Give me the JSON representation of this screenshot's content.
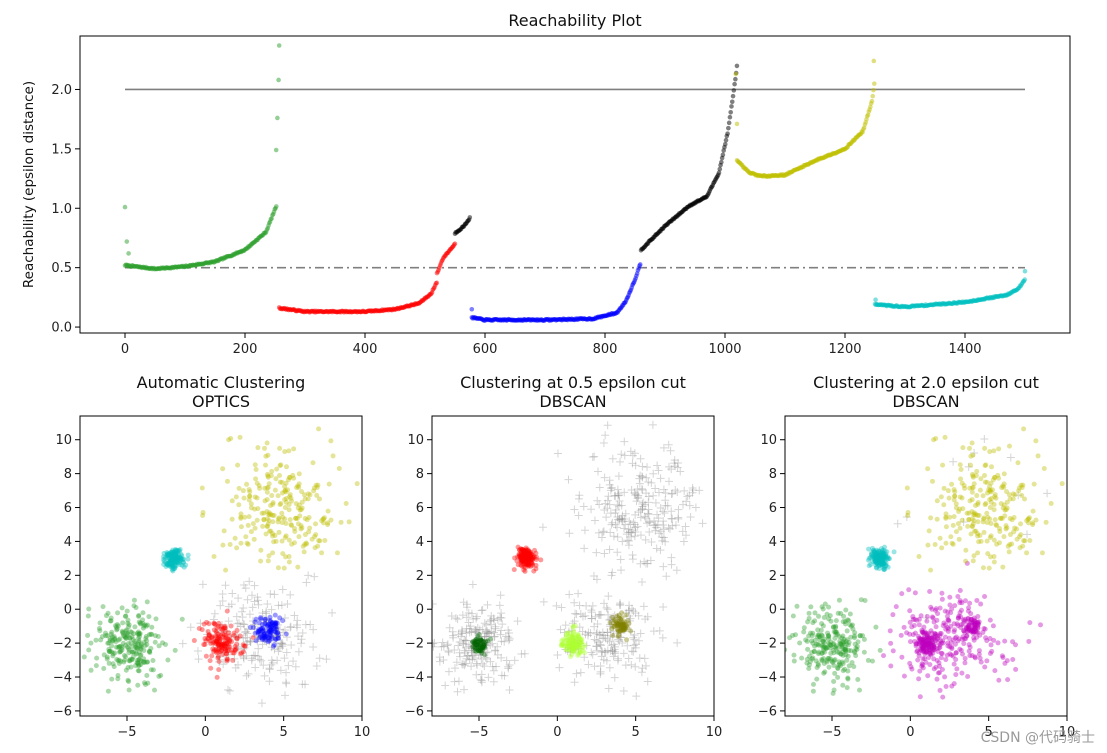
{
  "watermark": "CSDN @代码骑士",
  "colors": {
    "green": "#2ca02c",
    "red": "#ff0000",
    "blue": "#0000ff",
    "black": "#000000",
    "yellow": "#bfbf00",
    "cyan": "#00bfbf",
    "magenta": "#bf00bf",
    "olive": "#808000",
    "lime": "#adff2f",
    "darkgreen": "#006400",
    "noise": "#888888",
    "line_gray": "#7f7f7f"
  },
  "chart_data": [
    {
      "id": "reach",
      "type": "scatter",
      "title": "Reachability Plot",
      "xlabel": "",
      "ylabel": "Reachability (epsilon distance)",
      "xlim": [
        -75,
        1575
      ],
      "ylim": [
        -0.05,
        2.45
      ],
      "xticks": [
        0,
        200,
        400,
        600,
        800,
        1000,
        1200,
        1400
      ],
      "yticks": [
        0.0,
        0.5,
        1.0,
        1.5,
        2.0
      ],
      "ytick_labels": [
        "0.0",
        "0.5",
        "1.0",
        "1.5",
        "2.0"
      ],
      "hlines": [
        {
          "y": 2.0,
          "style": "solid",
          "color": "#7f7f7f"
        },
        {
          "y": 0.5,
          "style": "dashdot",
          "color": "#7f7f7f"
        }
      ],
      "segments": [
        {
          "color": "green",
          "x0": 0,
          "x1": 253,
          "curve": [
            [
              0,
              0.52
            ],
            [
              50,
              0.49
            ],
            [
              100,
              0.51
            ],
            [
              150,
              0.55
            ],
            [
              200,
              0.65
            ],
            [
              235,
              0.8
            ],
            [
              253,
              1.03
            ]
          ],
          "outliers": [
            [
              0,
              1.01
            ],
            [
              3,
              0.72
            ],
            [
              6,
              0.62
            ],
            [
              252,
              1.49
            ],
            [
              254,
              1.76
            ],
            [
              256,
              2.08
            ],
            [
              257,
              2.37
            ]
          ]
        },
        {
          "color": "red",
          "x0": 257,
          "x1": 520,
          "curve": [
            [
              257,
              0.16
            ],
            [
              300,
              0.13
            ],
            [
              400,
              0.13
            ],
            [
              450,
              0.15
            ],
            [
              490,
              0.2
            ],
            [
              510,
              0.28
            ],
            [
              520,
              0.38
            ]
          ]
        },
        {
          "color": "red",
          "x0": 520,
          "x1": 550,
          "curve": [
            [
              520,
              0.45
            ],
            [
              530,
              0.58
            ],
            [
              550,
              0.7
            ]
          ]
        },
        {
          "color": "black",
          "x0": 550,
          "x1": 575,
          "curve": [
            [
              550,
              0.79
            ],
            [
              565,
              0.85
            ],
            [
              575,
              0.92
            ]
          ]
        },
        {
          "color": "blue",
          "x0": 578,
          "x1": 860,
          "curve": [
            [
              578,
              0.08
            ],
            [
              600,
              0.06
            ],
            [
              700,
              0.06
            ],
            [
              780,
              0.07
            ],
            [
              820,
              0.12
            ],
            [
              835,
              0.22
            ],
            [
              850,
              0.4
            ],
            [
              860,
              0.55
            ]
          ],
          "outliers": [
            [
              578,
              0.15
            ]
          ]
        },
        {
          "color": "black",
          "x0": 860,
          "x1": 1020,
          "curve": [
            [
              860,
              0.65
            ],
            [
              900,
              0.85
            ],
            [
              940,
              1.02
            ],
            [
              970,
              1.1
            ],
            [
              990,
              1.3
            ],
            [
              1005,
              1.65
            ],
            [
              1015,
              2.0
            ],
            [
              1020,
              2.2
            ]
          ]
        },
        {
          "color": "yellow",
          "x0": 1020,
          "x1": 1250,
          "curve": [
            [
              1020,
              1.4
            ],
            [
              1040,
              1.3
            ],
            [
              1060,
              1.27
            ],
            [
              1100,
              1.28
            ],
            [
              1150,
              1.4
            ],
            [
              1200,
              1.5
            ],
            [
              1230,
              1.65
            ],
            [
              1245,
              1.9
            ],
            [
              1250,
              2.1
            ]
          ],
          "outliers": [
            [
              1020,
              1.71
            ],
            [
              1018,
              2.13
            ],
            [
              1248,
              2.24
            ]
          ]
        },
        {
          "color": "cyan",
          "x0": 1250,
          "x1": 1500,
          "curve": [
            [
              1250,
              0.19
            ],
            [
              1300,
              0.17
            ],
            [
              1400,
              0.21
            ],
            [
              1470,
              0.27
            ],
            [
              1490,
              0.33
            ],
            [
              1500,
              0.4
            ]
          ],
          "outliers": [
            [
              1251,
              0.23
            ],
            [
              1500,
              0.47
            ]
          ]
        }
      ]
    },
    {
      "id": "optics",
      "type": "scatter",
      "title": "Automatic Clustering",
      "subtitle": "OPTICS",
      "xlim": [
        -8,
        10
      ],
      "ylim": [
        -6.3,
        11.4
      ],
      "xticks": [
        -5,
        0,
        5,
        10
      ],
      "xtick_labels": [
        "−5",
        "0",
        "5",
        "10"
      ],
      "yticks": [
        -6,
        -4,
        -2,
        0,
        2,
        4,
        6,
        8,
        10
      ],
      "ytick_labels": [
        "−6",
        "−4",
        "−2",
        "0",
        "2",
        "4",
        "6",
        "8",
        "10"
      ],
      "clusters": [
        {
          "color": "green",
          "cx": -5,
          "cy": -2,
          "sx": 1.1,
          "sy": 1.1,
          "n": 240,
          "marker": "dot"
        },
        {
          "color": "cyan",
          "cx": -2,
          "cy": 3,
          "sx": 0.3,
          "sy": 0.3,
          "n": 150,
          "marker": "dot"
        },
        {
          "color": "red",
          "cx": 1,
          "cy": -2,
          "sx": 0.6,
          "sy": 0.6,
          "n": 150,
          "marker": "dot"
        },
        {
          "color": "blue",
          "cx": 4,
          "cy": -1.2,
          "sx": 0.45,
          "sy": 0.45,
          "n": 100,
          "marker": "dot"
        },
        {
          "color": "yellow",
          "cx": 5,
          "cy": 6,
          "sx": 1.8,
          "sy": 1.8,
          "n": 250,
          "marker": "dot"
        },
        {
          "color": "noise",
          "cx": 3.5,
          "cy": -1.5,
          "sx": 1.8,
          "sy": 1.5,
          "n": 190,
          "marker": "plus"
        }
      ]
    },
    {
      "id": "dbscan05",
      "type": "scatter",
      "title": "Clustering at 0.5 epsilon cut",
      "subtitle": "DBSCAN",
      "xlim": [
        -8,
        10
      ],
      "ylim": [
        -6.3,
        11.4
      ],
      "xticks": [
        -5,
        0,
        5,
        10
      ],
      "xtick_labels": [
        "−5",
        "0",
        "5",
        "10"
      ],
      "yticks": [
        -6,
        -4,
        -2,
        0,
        2,
        4,
        6,
        8,
        10
      ],
      "ytick_labels": [
        "−6",
        "−4",
        "−2",
        "0",
        "2",
        "4",
        "6",
        "8",
        "10"
      ],
      "clusters": [
        {
          "color": "noise",
          "cx": -5,
          "cy": -2,
          "sx": 1.2,
          "sy": 1.2,
          "n": 200,
          "marker": "plus"
        },
        {
          "color": "noise",
          "cx": 5,
          "cy": 6,
          "sx": 1.8,
          "sy": 1.8,
          "n": 250,
          "marker": "plus"
        },
        {
          "color": "noise",
          "cx": 3,
          "cy": -1.5,
          "sx": 1.6,
          "sy": 1.4,
          "n": 180,
          "marker": "plus"
        },
        {
          "color": "darkgreen",
          "cx": -5,
          "cy": -2.1,
          "sx": 0.25,
          "sy": 0.25,
          "n": 60,
          "marker": "dot"
        },
        {
          "color": "red",
          "cx": -2,
          "cy": 3,
          "sx": 0.3,
          "sy": 0.3,
          "n": 150,
          "marker": "dot"
        },
        {
          "color": "lime",
          "cx": 1,
          "cy": -2,
          "sx": 0.35,
          "sy": 0.35,
          "n": 110,
          "marker": "dot"
        },
        {
          "color": "olive",
          "cx": 4,
          "cy": -1,
          "sx": 0.3,
          "sy": 0.3,
          "n": 70,
          "marker": "dot"
        }
      ]
    },
    {
      "id": "dbscan20",
      "type": "scatter",
      "title": "Clustering at 2.0 epsilon cut",
      "subtitle": "DBSCAN",
      "xlim": [
        -8,
        10
      ],
      "ylim": [
        -6.3,
        11.4
      ],
      "xticks": [
        -5,
        0,
        5,
        10
      ],
      "xtick_labels": [
        "−5",
        "0",
        "5",
        "10"
      ],
      "yticks": [
        -6,
        -4,
        -2,
        0,
        2,
        4,
        6,
        8,
        10
      ],
      "ytick_labels": [
        "−6",
        "−4",
        "−2",
        "0",
        "2",
        "4",
        "6",
        "8",
        "10"
      ],
      "clusters": [
        {
          "color": "green",
          "cx": -5,
          "cy": -2,
          "sx": 1.1,
          "sy": 1.1,
          "n": 240,
          "marker": "dot"
        },
        {
          "color": "cyan",
          "cx": -2,
          "cy": 3,
          "sx": 0.3,
          "sy": 0.3,
          "n": 150,
          "marker": "dot"
        },
        {
          "color": "magenta",
          "cx": 2.5,
          "cy": -1.7,
          "sx": 1.7,
          "sy": 1.4,
          "n": 250,
          "marker": "dot"
        },
        {
          "color": "magenta",
          "cx": 1,
          "cy": -2,
          "sx": 0.35,
          "sy": 0.35,
          "n": 120,
          "marker": "dot"
        },
        {
          "color": "magenta",
          "cx": 4,
          "cy": -1,
          "sx": 0.3,
          "sy": 0.3,
          "n": 60,
          "marker": "dot"
        },
        {
          "color": "yellow",
          "cx": 5,
          "cy": 6,
          "sx": 1.8,
          "sy": 1.8,
          "n": 250,
          "marker": "dot"
        },
        {
          "color": "noise",
          "cx": 5,
          "cy": 6,
          "sx": 3.5,
          "sy": 3.0,
          "n": 15,
          "marker": "plus"
        }
      ]
    }
  ]
}
